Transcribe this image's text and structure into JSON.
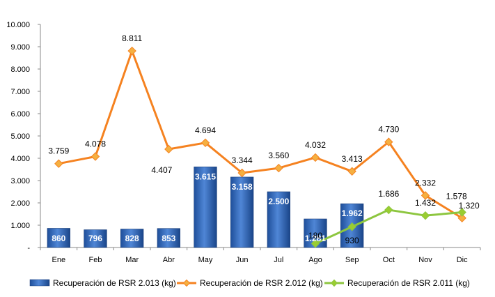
{
  "chart_data": {
    "type": "bar",
    "categories": [
      "Ene",
      "Feb",
      "Mar",
      "Abr",
      "May",
      "Jun",
      "Jul",
      "Ago",
      "Sep",
      "Oct",
      "Nov",
      "Dic"
    ],
    "ylim": [
      0,
      10000
    ],
    "y_ticks": [
      "-",
      "1.000",
      "2.000",
      "3.000",
      "4.000",
      "5.000",
      "6.000",
      "7.000",
      "8.000",
      "9.000",
      "10.000"
    ],
    "grid": false,
    "legend_position": "bottom",
    "series": [
      {
        "name": "Recuperación de RSR 2.013 (kg)",
        "type": "bar",
        "color": "#2E64B4",
        "values": [
          860,
          796,
          828,
          853,
          3615,
          3158,
          2500,
          1281,
          1962,
          null,
          null,
          null
        ],
        "labels": [
          "860",
          "796",
          "828",
          "853",
          "3.615",
          "3.158",
          "2.500",
          "1.281",
          "1.962",
          null,
          null,
          null
        ]
      },
      {
        "name": "Recuperación de RSR 2.012 (kg)",
        "type": "line",
        "color": "#F58220",
        "marker_color": "#F5B041",
        "values": [
          3759,
          4078,
          8811,
          4407,
          4694,
          3344,
          3560,
          4032,
          3413,
          4730,
          2332,
          1320
        ],
        "labels": [
          "3.759",
          "4.078",
          "8.811",
          "4.407",
          "4.694",
          "3.344",
          "3.560",
          "4.032",
          "3.413",
          "4.730",
          "2.332",
          "1.320"
        ]
      },
      {
        "name": "Recuperación de RSR 2.011 (kg)",
        "type": "line",
        "color": "#8DC63F",
        "marker_color": "#9ACD32",
        "values": [
          null,
          null,
          null,
          null,
          null,
          null,
          null,
          180,
          930,
          1686,
          1432,
          1578
        ],
        "labels": [
          null,
          null,
          null,
          null,
          null,
          null,
          null,
          "180",
          "930",
          "1.686",
          "1.432",
          "1.578"
        ]
      }
    ]
  }
}
